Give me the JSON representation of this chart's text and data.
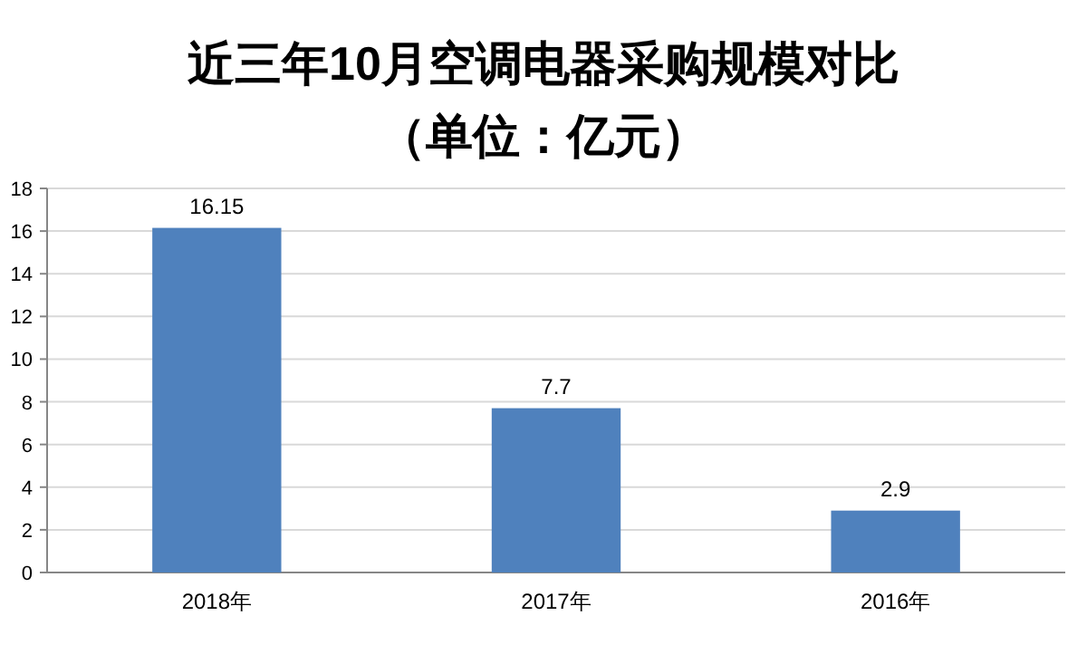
{
  "chart_data": {
    "type": "bar",
    "title": "近三年10月空调电器采购规模对比",
    "subtitle": "（单位：亿元）",
    "categories": [
      "2018年",
      "2017年",
      "2016年"
    ],
    "series": [
      {
        "color": "#4f81bd",
        "values": [
          16.15,
          7.7,
          2.9
        ]
      }
    ],
    "ylim": [
      0,
      18
    ],
    "yticks": [
      0,
      2,
      4,
      6,
      8,
      10,
      12,
      14,
      16,
      18
    ],
    "grid": "y",
    "data_labels": true
  }
}
